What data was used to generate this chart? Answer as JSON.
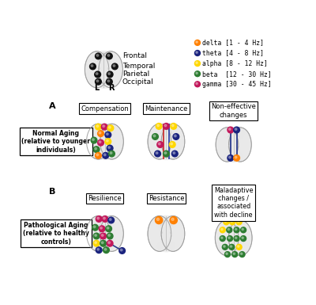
{
  "legend_items": [
    {
      "label": "delta",
      "range": "[1 - 4 Hz]",
      "color": "#FF8000"
    },
    {
      "label": "theta",
      "range": "[4 - 8 Hz]",
      "color": "#1A237E"
    },
    {
      "label": "alpha",
      "range": "[8 - 12 Hz]",
      "color": "#FFD700"
    },
    {
      "label": "beta",
      "range": "[12 - 30 Hz]",
      "color": "#2E7D32"
    },
    {
      "label": "gamma",
      "range": "[30 - 45 Hz]",
      "color": "#C2185B"
    }
  ],
  "brain_labels": [
    "Frontal",
    "Temporal",
    "Parietal",
    "Occipital"
  ],
  "section_A": "A",
  "section_B": "B",
  "normal_aging": "Normal Aging\n(relative to younger\nindividuals)",
  "path_aging": "Pathological Aging\n(relative to healthy\ncontrols)",
  "box_comp": "Compensation",
  "box_maint": "Maintenance",
  "box_noneff": "Non-effective\nchanges",
  "box_resil": "Resilience",
  "box_resist": "Resistance",
  "box_malad": "Maladaptive\nchanges /\nassociated\nwith decline",
  "bg": "#FFFFFF"
}
